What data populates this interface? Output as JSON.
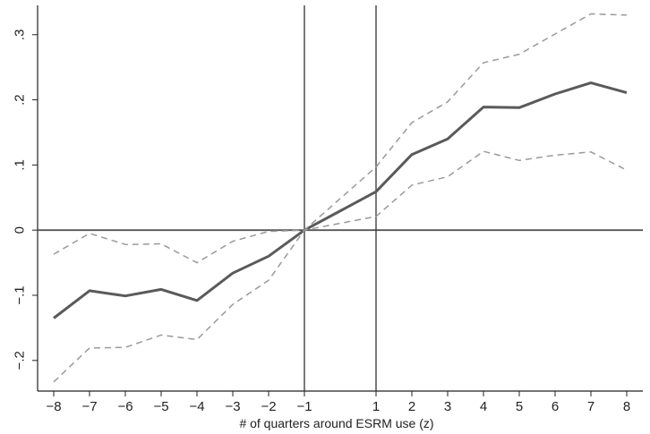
{
  "chart_data": {
    "type": "line",
    "title": "",
    "xlabel": "# of quarters around ESRM use (z)",
    "ylabel": "",
    "x": [
      -8,
      -7,
      -6,
      -5,
      -4,
      -3,
      -2,
      -1,
      1,
      2,
      3,
      4,
      5,
      6,
      7,
      8
    ],
    "x_ticks": [
      -8,
      -7,
      -6,
      -5,
      -4,
      -3,
      -2,
      -1,
      1,
      2,
      3,
      4,
      5,
      6,
      7,
      8
    ],
    "x_tick_labels": [
      "−8",
      "−7",
      "−6",
      "−5",
      "−4",
      "−3",
      "−2",
      "−1",
      "1",
      "2",
      "3",
      "4",
      "5",
      "6",
      "7",
      "8"
    ],
    "y_ticks": [
      -0.2,
      -0.1,
      0,
      0.1,
      0.2,
      0.3
    ],
    "y_tick_labels": [
      "−.2",
      "−.1",
      "0",
      ".1",
      ".2",
      ".3"
    ],
    "xlim": [
      -8.45,
      8.45
    ],
    "ylim": [
      -0.247,
      0.345
    ],
    "grid": false,
    "reference_lines": {
      "horizontal": [
        0
      ],
      "vertical": [
        -1,
        1
      ]
    },
    "series": [
      {
        "role": "estimate",
        "style": "solid",
        "color": "#5a5a5a",
        "values": [
          -0.135,
          -0.093,
          -0.101,
          -0.091,
          -0.108,
          -0.066,
          -0.04,
          0.0,
          0.059,
          0.116,
          0.14,
          0.189,
          0.188,
          0.209,
          0.226,
          0.211
        ]
      },
      {
        "role": "upper-ci",
        "style": "dashed",
        "color": "#9a9a9a",
        "values": [
          -0.037,
          -0.005,
          -0.022,
          -0.021,
          -0.05,
          -0.017,
          -0.002,
          0.0,
          0.097,
          0.165,
          0.197,
          0.257,
          0.27,
          0.301,
          0.332,
          0.33
        ]
      },
      {
        "role": "lower-ci",
        "style": "dashed",
        "color": "#9a9a9a",
        "values": [
          -0.233,
          -0.181,
          -0.18,
          -0.161,
          -0.168,
          -0.114,
          -0.077,
          0.0,
          0.021,
          0.069,
          0.082,
          0.121,
          0.107,
          0.115,
          0.12,
          0.092
        ]
      }
    ]
  }
}
